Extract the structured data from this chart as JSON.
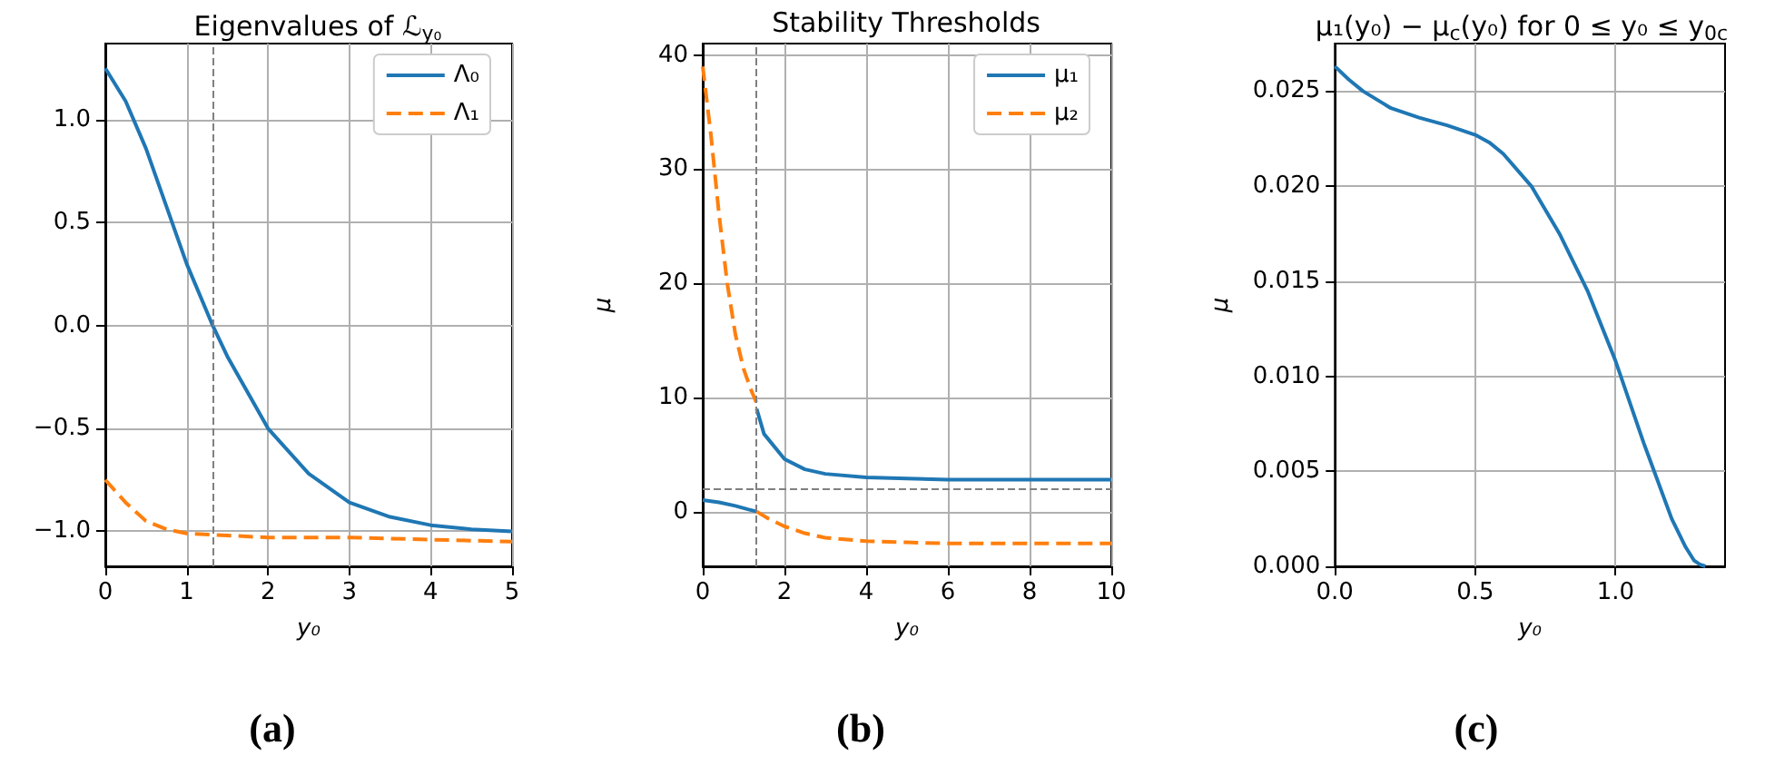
{
  "chart_data": [
    {
      "type": "line",
      "title": "Eigenvalues of ℒ$_{y₀}$",
      "xlabel": "y₀",
      "xlim": [
        0,
        5
      ],
      "xticks": [
        0,
        1,
        2,
        3,
        4,
        5
      ],
      "ylim": [
        -1.17,
        1.37
      ],
      "yticks": [
        {
          "value": -1,
          "label": "−1.0"
        },
        {
          "value": -0.5,
          "label": "−0.5"
        },
        {
          "value": 0,
          "label": "0.0"
        },
        {
          "value": 0.5,
          "label": "0.5"
        },
        {
          "value": 1,
          "label": "1.0"
        }
      ],
      "grid": true,
      "legend": "top right",
      "marker": "none",
      "series": [
        {
          "name": "Λ₀",
          "color": "#1f77b4",
          "line_style": "solid",
          "x": [
            0,
            0.25,
            0.5,
            0.75,
            1,
            1.32,
            1.5,
            2,
            2.5,
            3,
            3.5,
            4,
            4.5,
            5
          ],
          "values": [
            1.25,
            1.09,
            0.86,
            0.58,
            0.3,
            0,
            -0.15,
            -0.5,
            -0.72,
            -0.86,
            -0.93,
            -0.97,
            -0.99,
            -1.0
          ]
        },
        {
          "name": "Λ₁",
          "color": "#ff7f0e",
          "line_style": "dashed",
          "x": [
            0,
            0.25,
            0.5,
            0.75,
            1,
            1.5,
            2,
            3,
            4,
            5
          ],
          "values": [
            -0.75,
            -0.86,
            -0.95,
            -0.99,
            -1.01,
            -1.02,
            -1.03,
            -1.03,
            -1.04,
            -1.05
          ]
        }
      ],
      "ref_lines": [
        {
          "axis": "x",
          "value": 1.32,
          "color": "#808080",
          "line_style": "dashed"
        }
      ],
      "annotations": [
        "(a)"
      ]
    },
    {
      "type": "line",
      "title": "Stability Thresholds",
      "xlabel": "y₀",
      "ylabel": "μ",
      "xlim": [
        0,
        10
      ],
      "xticks": [
        0,
        2,
        4,
        6,
        8,
        10
      ],
      "ylim": [
        -4.8,
        41
      ],
      "yticks": [
        0,
        10,
        20,
        30,
        40
      ],
      "grid": true,
      "legend": "top right",
      "marker": "none",
      "series": [
        {
          "name": "μ₁",
          "color": "#1f77b4",
          "line_style": "solid",
          "x": [
            0,
            0.4,
            0.8,
            1.1,
            1.32,
            null,
            1.32,
            1.5,
            2,
            2.5,
            3,
            4,
            5,
            6,
            8,
            10
          ],
          "values": [
            1,
            0.8,
            0.5,
            0.2,
            0,
            null,
            9,
            6.8,
            4.6,
            3.7,
            3.3,
            3,
            2.9,
            2.8,
            2.8,
            2.8
          ]
        },
        {
          "name": "μ₂",
          "color": "#ff7f0e",
          "line_style": "dashed",
          "x": [
            0,
            0.2,
            0.4,
            0.6,
            0.8,
            1,
            1.2,
            1.32,
            null,
            1.32,
            1.6,
            2,
            2.5,
            3,
            4,
            5,
            6,
            8,
            10
          ],
          "values": [
            39,
            33,
            26,
            20,
            15.5,
            12.5,
            10.5,
            9.5,
            null,
            0,
            -0.6,
            -1.3,
            -1.9,
            -2.3,
            -2.6,
            -2.7,
            -2.8,
            -2.8,
            -2.8
          ]
        }
      ],
      "ref_lines": [
        {
          "axis": "x",
          "value": 1.32,
          "color": "#808080",
          "line_style": "dashed"
        },
        {
          "axis": "y",
          "value": 2,
          "color": "#808080",
          "line_style": "dashed"
        }
      ],
      "annotations": [
        "(b)"
      ]
    },
    {
      "type": "line",
      "title": "μ₁(y₀) − μ$_{c}$(y₀) for 0 ≤ y₀ ≤ y$_{0c}$",
      "xlabel": "y₀",
      "ylabel": "μ",
      "xlim": [
        0,
        1.39
      ],
      "xticks": [
        {
          "value": 0,
          "label": "0.0"
        },
        {
          "value": 0.5,
          "label": "0.5"
        },
        {
          "value": 1,
          "label": "1.0"
        }
      ],
      "ylim": [
        0,
        0.0275
      ],
      "yticks": [
        {
          "value": 0,
          "label": "0.000"
        },
        {
          "value": 0.005,
          "label": "0.005"
        },
        {
          "value": 0.01,
          "label": "0.010"
        },
        {
          "value": 0.015,
          "label": "0.015"
        },
        {
          "value": 0.02,
          "label": "0.020"
        },
        {
          "value": 0.025,
          "label": "0.025"
        }
      ],
      "grid": true,
      "marker": "none",
      "series": [
        {
          "color": "#1f77b4",
          "line_style": "solid",
          "x": [
            0,
            0.05,
            0.1,
            0.2,
            0.3,
            0.4,
            0.5,
            0.55,
            0.6,
            0.7,
            0.8,
            0.9,
            1,
            1.1,
            1.2,
            1.25,
            1.28,
            1.3,
            1.32
          ],
          "values": [
            0.0263,
            0.0256,
            0.025,
            0.0241,
            0.0236,
            0.0232,
            0.0227,
            0.0223,
            0.0217,
            0.02,
            0.0175,
            0.0145,
            0.0108,
            0.0065,
            0.0025,
            0.001,
            0.0003,
            0.0001,
            0
          ]
        }
      ],
      "annotations": [
        "(c)"
      ]
    }
  ]
}
